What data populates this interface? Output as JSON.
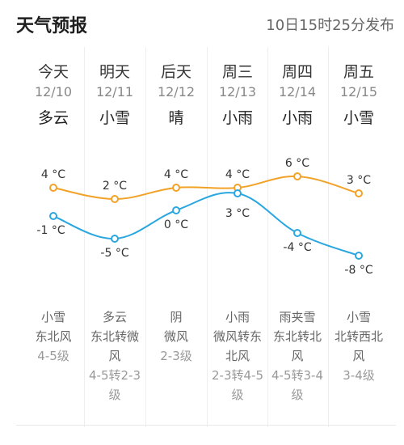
{
  "header": {
    "title": "天气预报",
    "publish_time": "10日15时25分发布"
  },
  "days": [
    {
      "day": "今天",
      "date": "12/10",
      "weather": "多云",
      "night_weather": "小雪",
      "wind_lines": [
        "东北风"
      ],
      "level_lines": [
        "4-5级"
      ]
    },
    {
      "day": "明天",
      "date": "12/11",
      "weather": "小雪",
      "night_weather": "多云",
      "wind_lines": [
        "东北转微",
        "风"
      ],
      "level_lines": [
        "4-5转2-3",
        "级"
      ]
    },
    {
      "day": "后天",
      "date": "12/12",
      "weather": "晴",
      "night_weather": "阴",
      "wind_lines": [
        "微风"
      ],
      "level_lines": [
        "2-3级"
      ]
    },
    {
      "day": "周三",
      "date": "12/13",
      "weather": "小雨",
      "night_weather": "小雨",
      "wind_lines": [
        "微风转东",
        "北风"
      ],
      "level_lines": [
        "2-3转4-5",
        "级"
      ]
    },
    {
      "day": "周四",
      "date": "12/14",
      "weather": "小雨",
      "night_weather": "雨夹雪",
      "wind_lines": [
        "东北转北",
        "风"
      ],
      "level_lines": [
        "4-5转3-4",
        "级"
      ]
    },
    {
      "day": "周五",
      "date": "12/15",
      "weather": "小雪",
      "night_weather": "小雪",
      "wind_lines": [
        "北转西北",
        "风"
      ],
      "level_lines": [
        "3-4级"
      ]
    }
  ],
  "chart_data": {
    "type": "line",
    "categories": [
      "12/10",
      "12/11",
      "12/12",
      "12/13",
      "12/14",
      "12/15"
    ],
    "series": [
      {
        "values": [
          4,
          2,
          4,
          4,
          6,
          3
        ],
        "labels": [
          "4 °C",
          "2 °C",
          "4 °C",
          "4 °C",
          "6 °C",
          "3 °C"
        ],
        "color": "#f2a227"
      },
      {
        "values": [
          -1,
          -5,
          0,
          3,
          -4,
          -8
        ],
        "labels": [
          "-1 °C",
          "-5 °C",
          "0 °C",
          "3 °C",
          "-4 °C",
          "-8 °C"
        ],
        "color": "#2aa7e0"
      }
    ],
    "ylim": [
      -8,
      6
    ]
  }
}
